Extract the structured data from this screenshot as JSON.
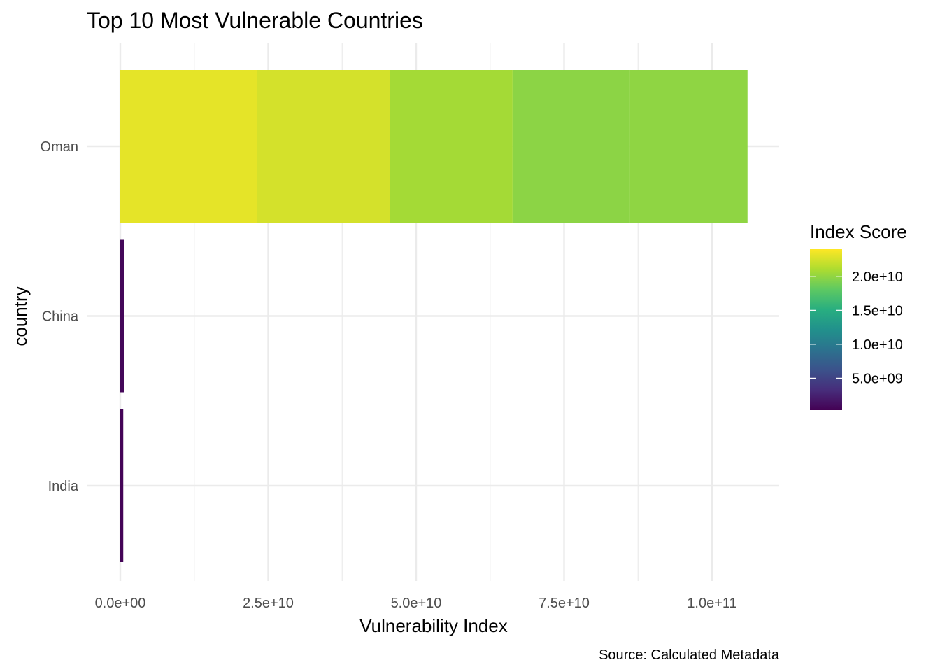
{
  "chart_data": {
    "type": "bar",
    "orientation": "horizontal",
    "stacked": true,
    "title": "Top 10 Most Vulnerable Countries",
    "xlabel": "Vulnerability Index",
    "ylabel": "country",
    "caption": "Source: Calculated Metadata",
    "xlim": [
      0,
      110000000000
    ],
    "x_ticks": [
      0,
      25000000000,
      50000000000,
      75000000000,
      100000000000
    ],
    "x_tick_labels": [
      "0.0e+00",
      "2.5e+10",
      "5.0e+10",
      "7.5e+10",
      "1.0e+11"
    ],
    "categories": [
      "Oman",
      "China",
      "India"
    ],
    "segments": [
      {
        "category": "Oman",
        "value": 23100000000
      },
      {
        "category": "Oman",
        "value": 22500000000
      },
      {
        "category": "Oman",
        "value": 20700000000
      },
      {
        "category": "Oman",
        "value": 19800000000
      },
      {
        "category": "Oman",
        "value": 19900000000
      },
      {
        "category": "China",
        "value": 700000000
      },
      {
        "category": "India",
        "value": 500000000
      }
    ],
    "legend": {
      "title": "Index Score",
      "placement": "right",
      "colormap": "viridis",
      "range": [
        300000000,
        24000000000
      ],
      "ticks": [
        5000000000,
        10000000000,
        15000000000,
        20000000000
      ],
      "tick_labels": [
        "5.0e+09",
        "1.0e+10",
        "1.5e+10",
        "2.0e+10"
      ]
    },
    "grid": true,
    "colors": {
      "grid": "#ebebeb",
      "background": "#ffffff"
    }
  }
}
